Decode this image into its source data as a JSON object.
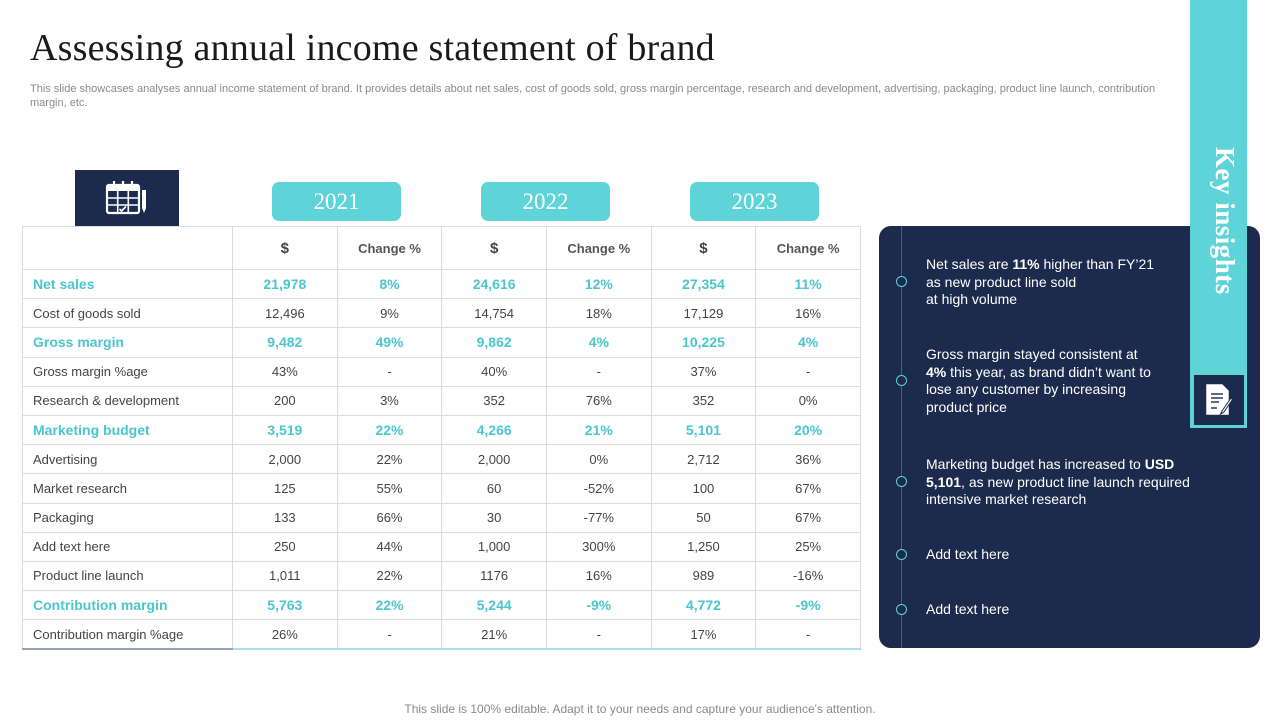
{
  "title": "Assessing annual income statement of brand",
  "subtitle": "This slide showcases analyses annual income statement of brand. It provides details about net sales, cost of goods sold, gross margin percentage, research and development, advertising, packaging, product line launch, contribution margin, etc.",
  "years": [
    "2021",
    "2022",
    "2023"
  ],
  "table": {
    "headers": [
      "$",
      "Change %",
      "$",
      "Change %",
      "$",
      "Change %"
    ],
    "rows": [
      {
        "label": "Net sales",
        "highlight": true,
        "cells": [
          "21,978",
          "8%",
          "24,616",
          "12%",
          "27,354",
          "11%"
        ]
      },
      {
        "label": "Cost of goods sold",
        "highlight": false,
        "cells": [
          "12,496",
          "9%",
          "14,754",
          "18%",
          "17,129",
          "16%"
        ]
      },
      {
        "label": "Gross margin",
        "highlight": true,
        "cells": [
          "9,482",
          "49%",
          "9,862",
          "4%",
          "10,225",
          "4%"
        ]
      },
      {
        "label": "Gross margin %age",
        "highlight": false,
        "cells": [
          "43%",
          "-",
          "40%",
          "-",
          "37%",
          "-"
        ]
      },
      {
        "label": "Research & development",
        "highlight": false,
        "cells": [
          "200",
          "3%",
          "352",
          "76%",
          "352",
          "0%"
        ]
      },
      {
        "label": "Marketing budget",
        "highlight": true,
        "cells": [
          "3,519",
          "22%",
          "4,266",
          "21%",
          "5,101",
          "20%"
        ]
      },
      {
        "label": "Advertising",
        "highlight": false,
        "cells": [
          "2,000",
          "22%",
          "2,000",
          "0%",
          "2,712",
          "36%"
        ]
      },
      {
        "label": "Market research",
        "highlight": false,
        "cells": [
          "125",
          "55%",
          "60",
          "-52%",
          "100",
          "67%"
        ]
      },
      {
        "label": "Packaging",
        "highlight": false,
        "cells": [
          "133",
          "66%",
          "30",
          "-77%",
          "50",
          "67%"
        ]
      },
      {
        "label": "Add text here",
        "highlight": false,
        "cells": [
          "250",
          "44%",
          "1,000",
          "300%",
          "1,250",
          "25%"
        ]
      },
      {
        "label": "Product line launch",
        "highlight": false,
        "cells": [
          "1,011",
          "22%",
          "1176",
          "16%",
          "989",
          "-16%"
        ]
      },
      {
        "label": "Contribution margin",
        "highlight": true,
        "cells": [
          "5,763",
          "22%",
          "5,244",
          "-9%",
          "4,772",
          "-9%"
        ]
      },
      {
        "label": "Contribution margin %age",
        "highlight": false,
        "cells": [
          "26%",
          "-",
          "21%",
          "-",
          "17%",
          "-"
        ]
      }
    ]
  },
  "insights": {
    "heading": "Key insights",
    "items": [
      {
        "segments": [
          {
            "t": "Net sales are ",
            "b": false
          },
          {
            "t": "11%",
            "b": true
          },
          {
            "t": " higher than FY’21\nas new product line sold\nat high volume",
            "b": false
          }
        ]
      },
      {
        "segments": [
          {
            "t": "Gross margin stayed consistent at\n",
            "b": false
          },
          {
            "t": "4%",
            "b": true
          },
          {
            "t": " this year, as brand didn’t want to\nlose any customer by increasing\nproduct price",
            "b": false
          }
        ]
      },
      {
        "segments": [
          {
            "t": "Marketing budget has increased to ",
            "b": false
          },
          {
            "t": "USD\n5,101",
            "b": true
          },
          {
            "t": ", as new product line launch required\nintensive market research",
            "b": false
          }
        ]
      },
      {
        "segments": [
          {
            "t": "Add text here",
            "b": false
          }
        ]
      },
      {
        "segments": [
          {
            "t": "Add text here",
            "b": false
          }
        ]
      }
    ]
  },
  "icons": {
    "calendar": "calendar-icon",
    "document": "document-edit-icon"
  },
  "colors": {
    "accent": "#5fd4d8",
    "highlight_text": "#4ac6cf",
    "navy": "#1c2b4d"
  },
  "footer": "This slide is 100% editable. Adapt it to your needs and capture your audience's attention."
}
